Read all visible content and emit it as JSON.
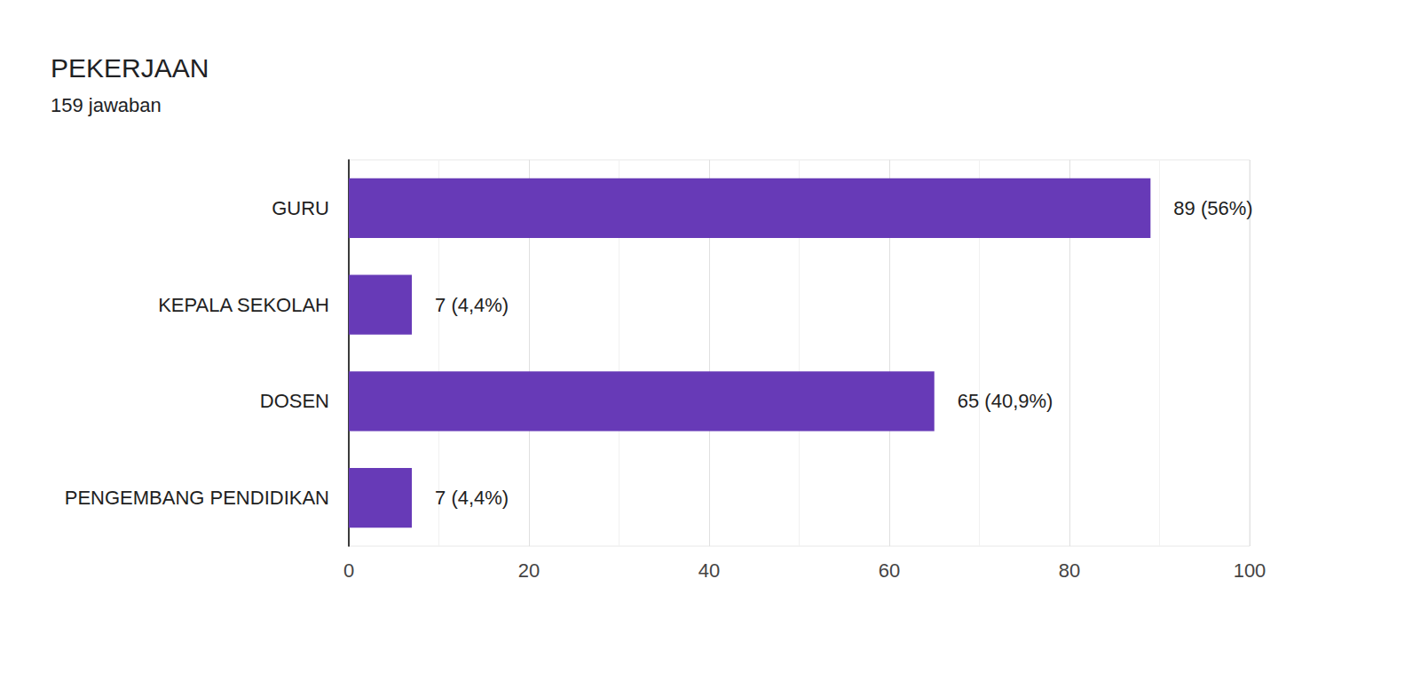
{
  "chart_data": {
    "type": "bar",
    "title": "PEKERJAAN",
    "subtitle": "159 jawaban",
    "orientation": "horizontal",
    "categories": [
      "GURU",
      "KEPALA SEKOLAH",
      "DOSEN",
      "PENGEMBANG PENDIDIKAN"
    ],
    "values": [
      89,
      7,
      65,
      7
    ],
    "value_labels": [
      "89 (56%)",
      "7 (4,4%)",
      "65 (40,9%)",
      "7 (4,4%)"
    ],
    "data_labels": true,
    "color": "#673ab7",
    "xlim": [
      0,
      100
    ],
    "xticks": [
      0,
      20,
      40,
      60,
      80,
      100
    ],
    "grid": true
  }
}
